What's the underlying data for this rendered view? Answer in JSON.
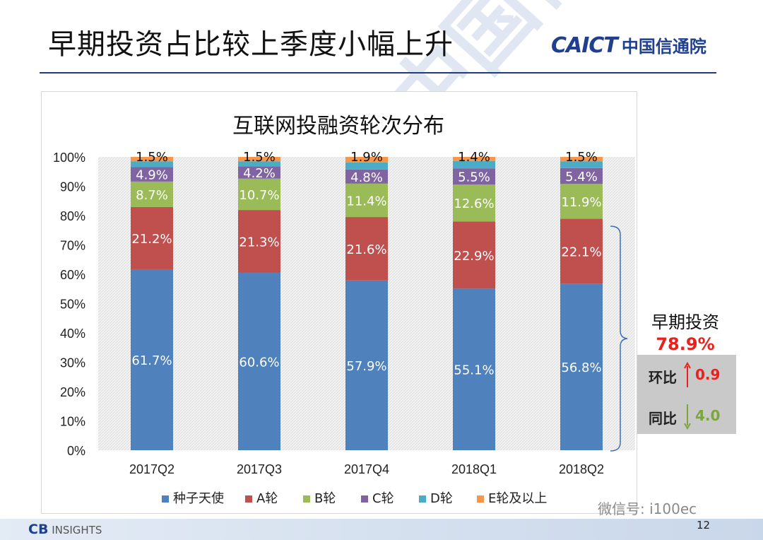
{
  "slide": {
    "title": "早期投资占比较上季度小幅上升",
    "logo_en": "CAICT",
    "logo_cn": "中国信通院",
    "page_number": "12",
    "footer_source_brand": "CB",
    "footer_source_text": "INSIGHTS",
    "wechat_watermark": "微信号: i100ec",
    "watermark_text": "CAICT 中国信通院"
  },
  "side_panel": {
    "early_label": "早期投资",
    "early_value": "78.9%",
    "qoq_label": "环比",
    "qoq_value": "0.9",
    "yoy_label": "同比",
    "yoy_value": "4.0",
    "colors": {
      "up": "#e8211c",
      "down": "#7aa63a"
    }
  },
  "chart_data": {
    "type": "bar",
    "stacked": true,
    "title": "互联网投融资轮次分布",
    "xlabel": "",
    "ylabel": "",
    "ylim": [
      0,
      100
    ],
    "yticks": [
      "0%",
      "10%",
      "20%",
      "30%",
      "40%",
      "50%",
      "60%",
      "70%",
      "80%",
      "90%",
      "100%"
    ],
    "grid": false,
    "legend_position": "bottom",
    "categories": [
      "2017Q2",
      "2017Q3",
      "2017Q4",
      "2018Q1",
      "2018Q2"
    ],
    "series": [
      {
        "name": "种子天使",
        "color": "#4f81bd",
        "values": [
          61.7,
          60.6,
          57.9,
          55.1,
          56.8
        ],
        "labels": [
          "61.7%",
          "60.6%",
          "57.9%",
          "55.1%",
          "56.8%"
        ]
      },
      {
        "name": "A轮",
        "color": "#c0504d",
        "values": [
          21.2,
          21.3,
          21.6,
          22.9,
          22.1
        ],
        "labels": [
          "21.2%",
          "21.3%",
          "21.6%",
          "22.9%",
          "22.1%"
        ]
      },
      {
        "name": "B轮",
        "color": "#9bbb59",
        "values": [
          8.7,
          10.7,
          11.4,
          12.6,
          11.9
        ],
        "labels": [
          "8.7%",
          "10.7%",
          "11.4%",
          "12.6%",
          "11.9%"
        ]
      },
      {
        "name": "C轮",
        "color": "#8064a2",
        "values": [
          4.9,
          4.2,
          4.8,
          5.5,
          5.4
        ],
        "labels": [
          "4.9%",
          "4.2%",
          "4.8%",
          "5.5%",
          "5.4%"
        ]
      },
      {
        "name": "D轮",
        "color": "#4bacc6",
        "values": [
          2.0,
          1.7,
          2.4,
          2.5,
          2.3
        ],
        "labels": [
          "",
          "",
          "",
          "",
          ""
        ]
      },
      {
        "name": "E轮及以上",
        "color": "#f79646",
        "values": [
          1.5,
          1.5,
          1.9,
          1.4,
          1.5
        ],
        "labels": [
          "1.5%",
          "1.5%",
          "1.9%",
          "1.4%",
          "1.5%"
        ]
      }
    ]
  }
}
